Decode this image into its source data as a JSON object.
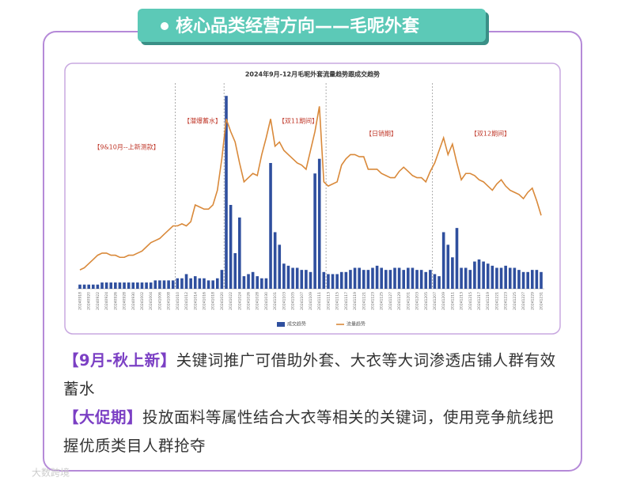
{
  "header": {
    "title": "核心品类经营方向——毛呢外套"
  },
  "chart_data": {
    "type": "bar-line",
    "title": "2024年9月-12月毛呢外套流量趋势跟成交趋势",
    "annotations": [
      "【9&10月--上新测款】",
      "【潜爆蓄水】",
      "【双11期间】",
      "【日销期】",
      "【双12期间】"
    ],
    "categories": [
      "20240918",
      null,
      "20240920",
      null,
      "20240922",
      null,
      "20240924",
      null,
      "20240926",
      null,
      "20240928",
      null,
      "20240930",
      null,
      "20241002",
      null,
      "20241004",
      null,
      "20241006",
      null,
      "20241008",
      null,
      "20241010",
      null,
      "20241012",
      null,
      "20241014",
      null,
      "20241016",
      null,
      "20241018",
      null,
      "20241020",
      null,
      "20241022",
      null,
      "20241024",
      null,
      "20241026",
      null,
      "20241028",
      null,
      "20241030",
      null,
      "20241101",
      null,
      "20241103",
      null,
      "20241105",
      null,
      "20241107",
      null,
      "20241109",
      null,
      "20241111",
      null,
      "20241113",
      null,
      "20241115",
      null,
      "20241117",
      null,
      "20241119",
      null,
      "20241121",
      null,
      "20241123",
      null,
      "20241125",
      null,
      "20241127",
      null,
      "20241129",
      null,
      "20241201",
      null,
      "20241203",
      null,
      "20241205",
      null,
      "20241207",
      null,
      "20241209",
      null,
      "20241211",
      null,
      "20241213",
      null,
      "20241215",
      null,
      "20241217",
      null,
      "20241219",
      null,
      "20241221",
      null,
      "20241223",
      null,
      "20241225",
      null,
      "20241227",
      null,
      "20241229",
      null,
      "20241231"
    ],
    "series": [
      {
        "name": "成交趋势",
        "color": "#2f4f9e",
        "values": [
          2,
          2,
          2,
          2,
          2,
          3,
          3,
          3,
          3,
          3,
          3,
          3,
          3,
          3,
          3,
          3,
          3,
          4,
          4,
          4,
          4,
          4,
          5,
          5,
          7,
          5,
          6,
          5,
          5,
          4,
          4,
          5,
          9,
          92,
          40,
          17,
          34,
          6,
          7,
          8,
          6,
          5,
          5,
          60,
          27,
          21,
          12,
          11,
          10,
          10,
          9,
          9,
          8,
          55,
          62,
          8,
          7,
          7,
          7,
          8,
          8,
          9,
          10,
          10,
          9,
          9,
          10,
          11,
          10,
          9,
          9,
          10,
          10,
          9,
          10,
          10,
          9,
          9,
          8,
          9,
          7,
          6,
          27,
          21,
          15,
          29,
          10,
          10,
          9,
          13,
          14,
          13,
          12,
          11,
          10,
          10,
          11,
          10,
          10,
          9,
          8,
          8,
          9,
          9,
          8
        ]
      },
      {
        "name": "流量趋势",
        "color": "#d9893a",
        "axis": "y2",
        "values": [
          9,
          10,
          12,
          14,
          16,
          17,
          17,
          16,
          16,
          15,
          15,
          16,
          16,
          17,
          18,
          20,
          22,
          23,
          24,
          26,
          28,
          30,
          30,
          31,
          30,
          32,
          40,
          39,
          38,
          38,
          40,
          47,
          62,
          81,
          75,
          70,
          60,
          51,
          53,
          55,
          54,
          64,
          72,
          81,
          68,
          70,
          66,
          64,
          62,
          60,
          59,
          57,
          66,
          75,
          87,
          51,
          49,
          50,
          51,
          59,
          62,
          64,
          64,
          63,
          63,
          57,
          57,
          57,
          55,
          54,
          53,
          53,
          56,
          58,
          56,
          54,
          53,
          53,
          51,
          56,
          60,
          66,
          72,
          64,
          69,
          60,
          52,
          55,
          55,
          54,
          52,
          51,
          49,
          47,
          50,
          52,
          49,
          47,
          46,
          45,
          43,
          46,
          48,
          42,
          35
        ]
      }
    ],
    "ylim": [
      0,
      100
    ],
    "y2lim": [
      0,
      100
    ]
  },
  "notes": [
    {
      "tag": "【9月-秋上新】",
      "text": "关键词推广可借助外套、大衣等大词渗透店铺人群有效蓄水"
    },
    {
      "tag": "【大促期】",
      "text": "投放面料等属性结合大衣等相关的关键词，使用竞争航线把握优质类目人群抢夺"
    }
  ],
  "watermark": "大数跨境"
}
